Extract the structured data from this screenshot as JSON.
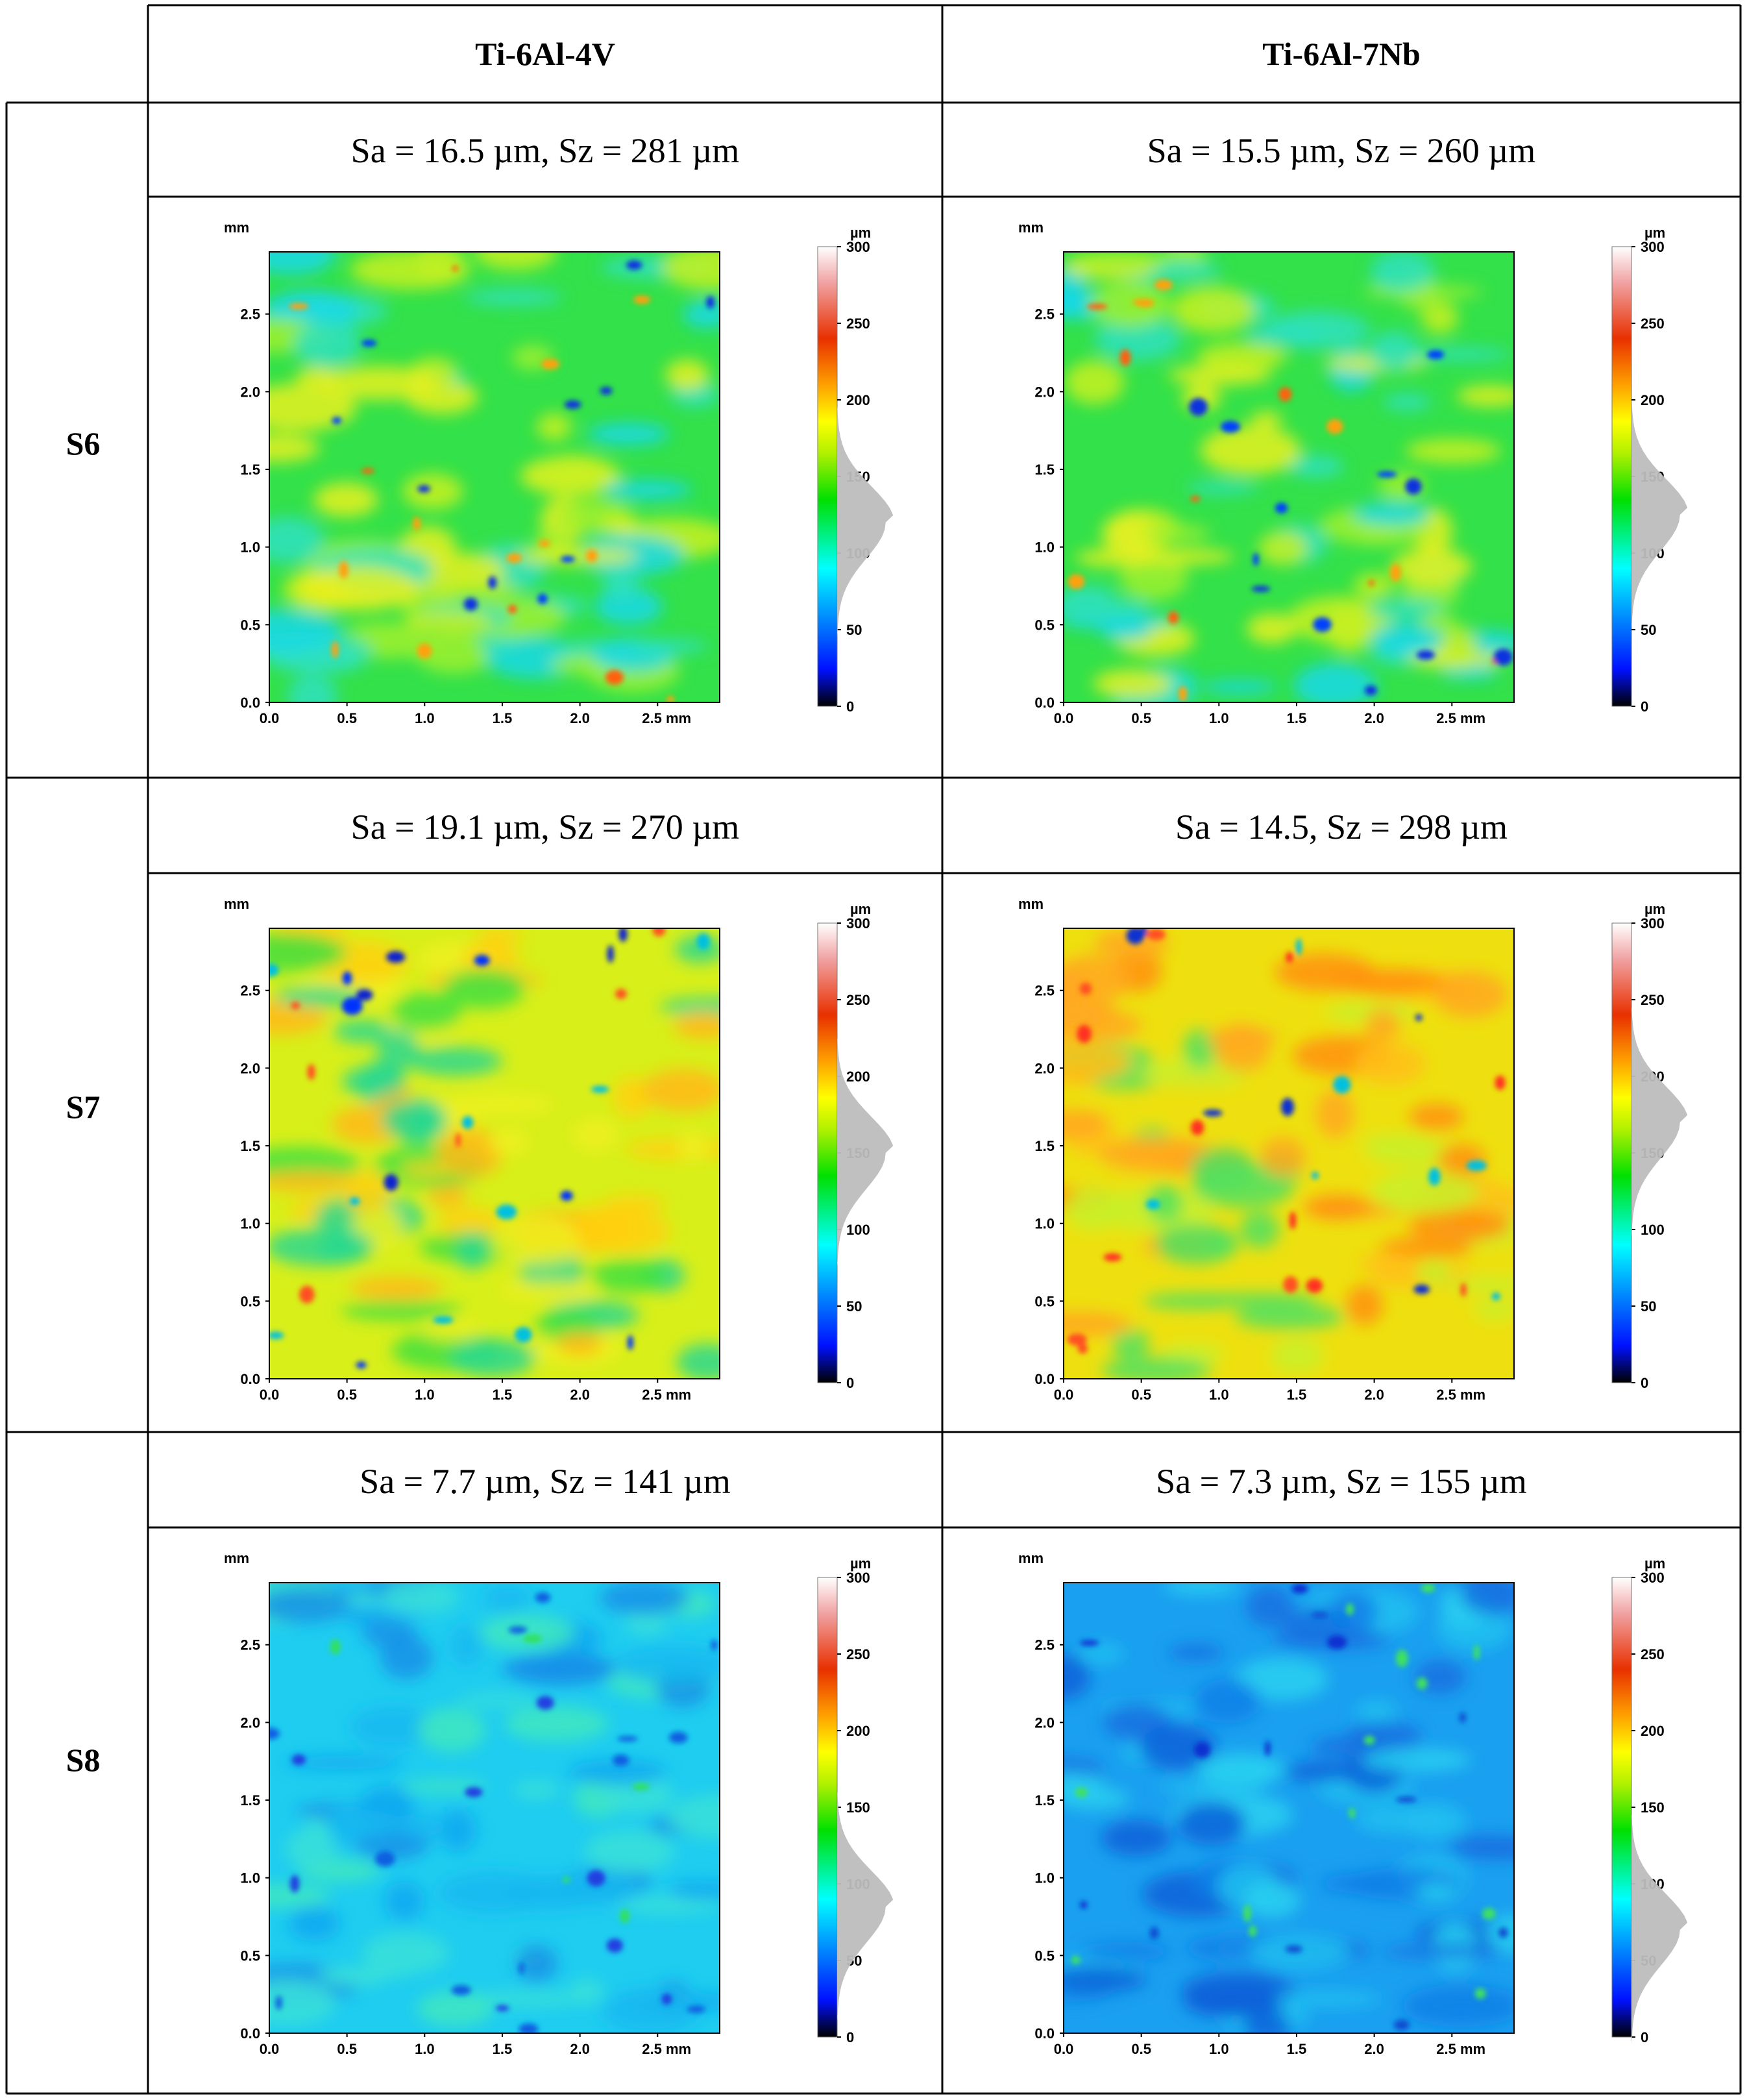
{
  "columns": [
    "Ti-6Al-4V",
    "Ti-6Al-7Nb"
  ],
  "rows": [
    {
      "label": "S6",
      "cells": [
        {
          "stats": "Sa = 16.5 µm, Sz = 281 µm",
          "mean_height": 120,
          "scheme": "green-mixed"
        },
        {
          "stats": "Sa = 15.5 µm, Sz = 260 µm",
          "mean_height": 125,
          "scheme": "green-mixed"
        }
      ]
    },
    {
      "label": "S7",
      "cells": [
        {
          "stats": "Sa = 19.1 µm, Sz = 270 µm",
          "mean_height": 150,
          "scheme": "yellow-mixed"
        },
        {
          "stats": "Sa = 14.5, Sz = 298 µm",
          "mean_height": 170,
          "scheme": "orange-mixed"
        }
      ]
    },
    {
      "label": "S8",
      "cells": [
        {
          "stats": "Sa = 7.7 µm, Sz = 141 µm",
          "mean_height": 85,
          "scheme": "cyan"
        },
        {
          "stats": "Sa = 7.3 µm, Sz = 155 µm",
          "mean_height": 70,
          "scheme": "blue"
        }
      ]
    }
  ],
  "map_axis": {
    "y_unit": "mm",
    "x_ticks": [
      "0.0",
      "0.5",
      "1.0",
      "1.5",
      "2.0",
      "2.5 mm"
    ],
    "y_ticks": [
      "0.0",
      "0.5",
      "1.0",
      "1.5",
      "2.0",
      "2.5"
    ]
  },
  "colorbar": {
    "unit": "µm",
    "ticks": [
      "0",
      "50",
      "100",
      "150",
      "200",
      "250",
      "300"
    ],
    "stops": [
      "#000000",
      "#0000ff",
      "#00ffff",
      "#00e000",
      "#ffff00",
      "#ff8000",
      "#e02000",
      "#ffffff"
    ]
  },
  "colors": {
    "grid": "#000000",
    "histogram": "#bdbdbd"
  }
}
